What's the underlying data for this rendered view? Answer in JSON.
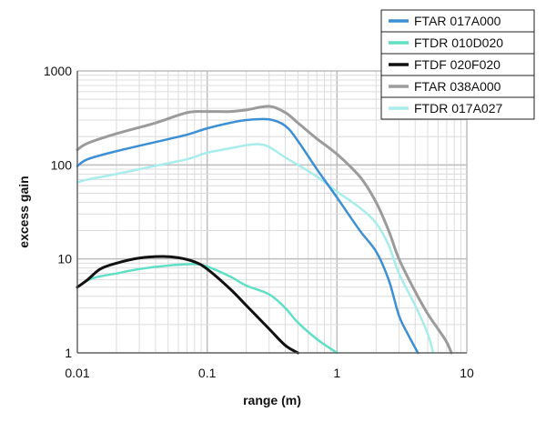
{
  "chart_data": {
    "type": "line",
    "title": "",
    "xlabel": "range (m)",
    "ylabel": "excess gain",
    "x_scale": "log",
    "y_scale": "log",
    "xlim": [
      0.01,
      10
    ],
    "ylim": [
      1,
      1000
    ],
    "grid": true,
    "legend_position": "top-right",
    "x_ticks": [
      "0.01",
      "0.1",
      "1",
      "10"
    ],
    "y_ticks": [
      "1",
      "10",
      "100",
      "1000"
    ],
    "series": [
      {
        "name": "FTAR 017A000",
        "color": "#3d8fd4",
        "width": 2.5,
        "points": [
          [
            0.01,
            97
          ],
          [
            0.012,
            115
          ],
          [
            0.02,
            140
          ],
          [
            0.04,
            175
          ],
          [
            0.07,
            210
          ],
          [
            0.1,
            245
          ],
          [
            0.15,
            280
          ],
          [
            0.2,
            300
          ],
          [
            0.3,
            305
          ],
          [
            0.4,
            260
          ],
          [
            0.5,
            180
          ],
          [
            0.7,
            90
          ],
          [
            1.0,
            45
          ],
          [
            1.5,
            20
          ],
          [
            2.0,
            12
          ],
          [
            2.5,
            6
          ],
          [
            3.0,
            2.5
          ],
          [
            3.5,
            1.6
          ],
          [
            4.2,
            1
          ]
        ]
      },
      {
        "name": "FTDR 010D020",
        "color": "#5fe0c6",
        "width": 2.5,
        "points": [
          [
            0.01,
            5
          ],
          [
            0.013,
            6.2
          ],
          [
            0.02,
            7
          ],
          [
            0.03,
            7.8
          ],
          [
            0.05,
            8.5
          ],
          [
            0.08,
            8.8
          ],
          [
            0.1,
            8.3
          ],
          [
            0.15,
            6.5
          ],
          [
            0.2,
            5.2
          ],
          [
            0.3,
            4.2
          ],
          [
            0.4,
            3.0
          ],
          [
            0.5,
            2.1
          ],
          [
            0.7,
            1.4
          ],
          [
            0.9,
            1.1
          ],
          [
            1.0,
            1
          ]
        ]
      },
      {
        "name": "FTDF 020F020",
        "color": "#111111",
        "width": 3,
        "points": [
          [
            0.01,
            5
          ],
          [
            0.012,
            6
          ],
          [
            0.015,
            7.8
          ],
          [
            0.02,
            9
          ],
          [
            0.03,
            10.2
          ],
          [
            0.045,
            10.6
          ],
          [
            0.06,
            10.3
          ],
          [
            0.08,
            9.3
          ],
          [
            0.1,
            7.8
          ],
          [
            0.15,
            4.8
          ],
          [
            0.2,
            3.2
          ],
          [
            0.3,
            1.8
          ],
          [
            0.4,
            1.2
          ],
          [
            0.5,
            1
          ]
        ]
      },
      {
        "name": "FTAR 038A000",
        "color": "#9b9b9b",
        "width": 3,
        "points": [
          [
            0.01,
            145
          ],
          [
            0.012,
            170
          ],
          [
            0.02,
            215
          ],
          [
            0.04,
            280
          ],
          [
            0.07,
            360
          ],
          [
            0.1,
            370
          ],
          [
            0.15,
            370
          ],
          [
            0.2,
            385
          ],
          [
            0.3,
            420
          ],
          [
            0.4,
            360
          ],
          [
            0.5,
            280
          ],
          [
            0.7,
            190
          ],
          [
            1.0,
            130
          ],
          [
            1.5,
            75
          ],
          [
            2.0,
            40
          ],
          [
            2.5,
            20
          ],
          [
            3.0,
            10
          ],
          [
            4.0,
            4.5
          ],
          [
            5.0,
            2.6
          ],
          [
            6.0,
            1.8
          ],
          [
            7.0,
            1.3
          ],
          [
            7.6,
            1
          ]
        ]
      },
      {
        "name": "FTDR 017A027",
        "color": "#a8ecec",
        "width": 2.5,
        "points": [
          [
            0.01,
            65
          ],
          [
            0.012,
            70
          ],
          [
            0.02,
            80
          ],
          [
            0.04,
            98
          ],
          [
            0.07,
            115
          ],
          [
            0.1,
            135
          ],
          [
            0.15,
            150
          ],
          [
            0.2,
            162
          ],
          [
            0.25,
            166
          ],
          [
            0.3,
            155
          ],
          [
            0.4,
            120
          ],
          [
            0.5,
            100
          ],
          [
            0.7,
            75
          ],
          [
            1.0,
            52
          ],
          [
            1.5,
            35
          ],
          [
            2.0,
            24
          ],
          [
            2.5,
            14
          ],
          [
            3.0,
            7
          ],
          [
            4.0,
            3.2
          ],
          [
            5.0,
            1.6
          ],
          [
            5.5,
            1
          ]
        ]
      }
    ]
  }
}
